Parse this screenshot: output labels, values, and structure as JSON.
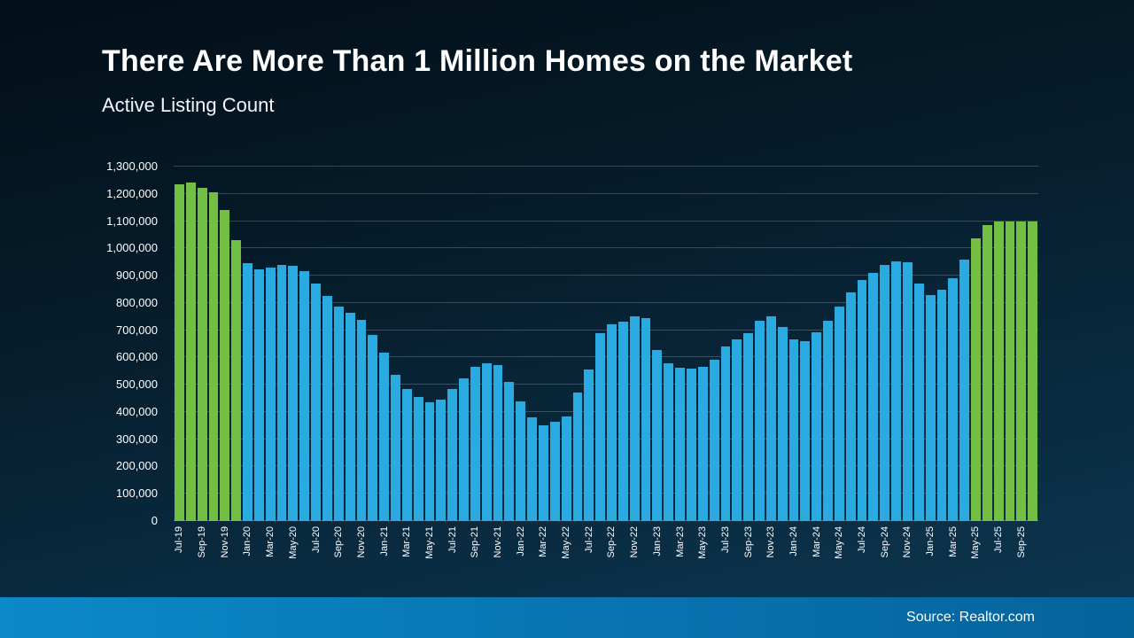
{
  "header": {
    "title": "There Are More Than 1 Million Homes on the Market",
    "subtitle": "Active Listing Count"
  },
  "footer": {
    "source": "Source: Realtor.com"
  },
  "colors": {
    "bar_blue": "#29ABE2",
    "bar_green": "#73BF44",
    "background_top": "#030F18",
    "background_bottom": "#0D3852",
    "footer_blue": "#0C89C9",
    "text": "#FFFFFF",
    "gridline": "rgba(255,255,255,0.20)"
  },
  "chart_data": {
    "type": "bar",
    "title": "There Are More Than 1 Million Homes on the Market",
    "subtitle": "Active Listing Count",
    "xlabel": "",
    "ylabel": "",
    "ylim": [
      0,
      1300000
    ],
    "y_tick_step": 100000,
    "y_tick_labels": [
      "0",
      "100,000",
      "200,000",
      "300,000",
      "400,000",
      "500,000",
      "600,000",
      "700,000",
      "800,000",
      "900,000",
      "1,000,000",
      "1,100,000",
      "1,200,000",
      "1,300,000"
    ],
    "x_tick_every": 2,
    "grid": "horizontal",
    "legend": "none",
    "categories": [
      "Jul-19",
      "Aug-19",
      "Sep-19",
      "Oct-19",
      "Nov-19",
      "Dec-19",
      "Jan-20",
      "Feb-20",
      "Mar-20",
      "Apr-20",
      "May-20",
      "Jun-20",
      "Jul-20",
      "Aug-20",
      "Sep-20",
      "Oct-20",
      "Nov-20",
      "Dec-20",
      "Jan-21",
      "Feb-21",
      "Mar-21",
      "Apr-21",
      "May-21",
      "Jun-21",
      "Jul-21",
      "Aug-21",
      "Sep-21",
      "Oct-21",
      "Nov-21",
      "Dec-21",
      "Jan-22",
      "Feb-22",
      "Mar-22",
      "Apr-22",
      "May-22",
      "Jun-22",
      "Jul-22",
      "Aug-22",
      "Sep-22",
      "Oct-22",
      "Nov-22",
      "Dec-22",
      "Jan-23",
      "Feb-23",
      "Mar-23",
      "Apr-23",
      "May-23",
      "Jun-23",
      "Jul-23",
      "Aug-23",
      "Sep-23",
      "Oct-23",
      "Nov-23",
      "Dec-23",
      "Jan-24",
      "Feb-24",
      "Mar-24",
      "Apr-24",
      "May-24",
      "Jun-24",
      "Jul-24",
      "Aug-24",
      "Sep-24",
      "Oct-24",
      "Nov-24",
      "Dec-24",
      "Jan-25",
      "Feb-25",
      "Mar-25",
      "Apr-25",
      "May-25",
      "Jun-25",
      "Jul-25",
      "Aug-25",
      "Sep-25",
      "Oct-25"
    ],
    "values": [
      1235000,
      1240000,
      1222000,
      1205000,
      1140000,
      1030000,
      945000,
      922000,
      930000,
      940000,
      935000,
      916000,
      870000,
      824000,
      786000,
      765000,
      737000,
      683000,
      618000,
      536000,
      483000,
      455000,
      437000,
      444000,
      483000,
      524000,
      566000,
      578000,
      573000,
      511000,
      440000,
      380000,
      350000,
      365000,
      382000,
      470000,
      557000,
      690000,
      720000,
      730000,
      750000,
      745000,
      626000,
      578000,
      563000,
      558000,
      565000,
      590000,
      640000,
      665000,
      690000,
      735000,
      750000,
      712000,
      665000,
      660000,
      693000,
      734000,
      788000,
      840000,
      884000,
      909000,
      940000,
      953000,
      950000,
      870000,
      830000,
      848000,
      892000,
      958000,
      1036000,
      1085000,
      1100000,
      1098000,
      1100000,
      1100000
    ],
    "highlighted_green_indices": [
      0,
      1,
      2,
      3,
      4,
      5,
      70,
      71,
      72,
      73,
      74,
      75
    ]
  }
}
